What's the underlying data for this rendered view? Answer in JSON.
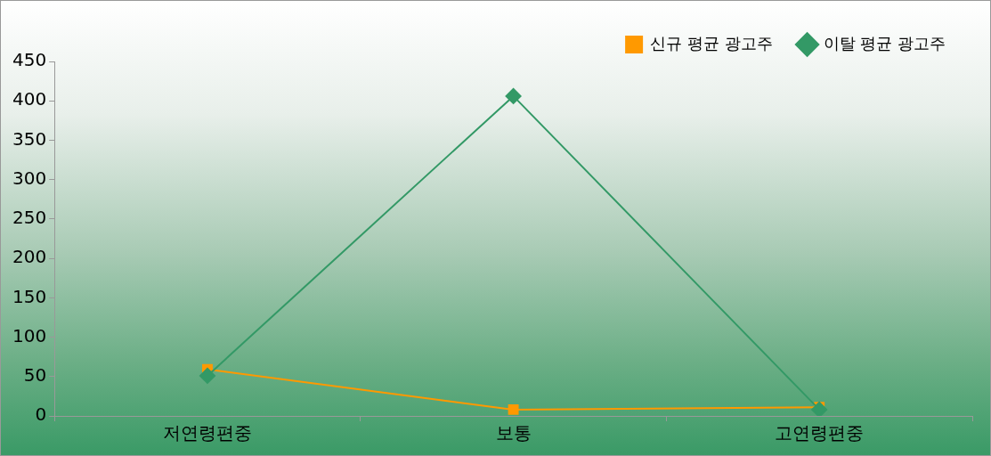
{
  "chart_data": {
    "type": "line",
    "categories": [
      "저연령편중",
      "보통",
      "고연령편중"
    ],
    "series": [
      {
        "name": "신규 평균 광고주",
        "color": "#ff9900",
        "marker": "square",
        "values": [
          59,
          8,
          11
        ]
      },
      {
        "name": "이탈 평균 광고주",
        "color": "#339966",
        "marker": "diamond",
        "values": [
          51,
          406,
          8
        ]
      }
    ],
    "ylim": [
      0,
      450
    ],
    "yticks": [
      0,
      50,
      100,
      150,
      200,
      250,
      300,
      350,
      400,
      450
    ],
    "grid": false,
    "legend": "top right",
    "line_style": "solid"
  }
}
